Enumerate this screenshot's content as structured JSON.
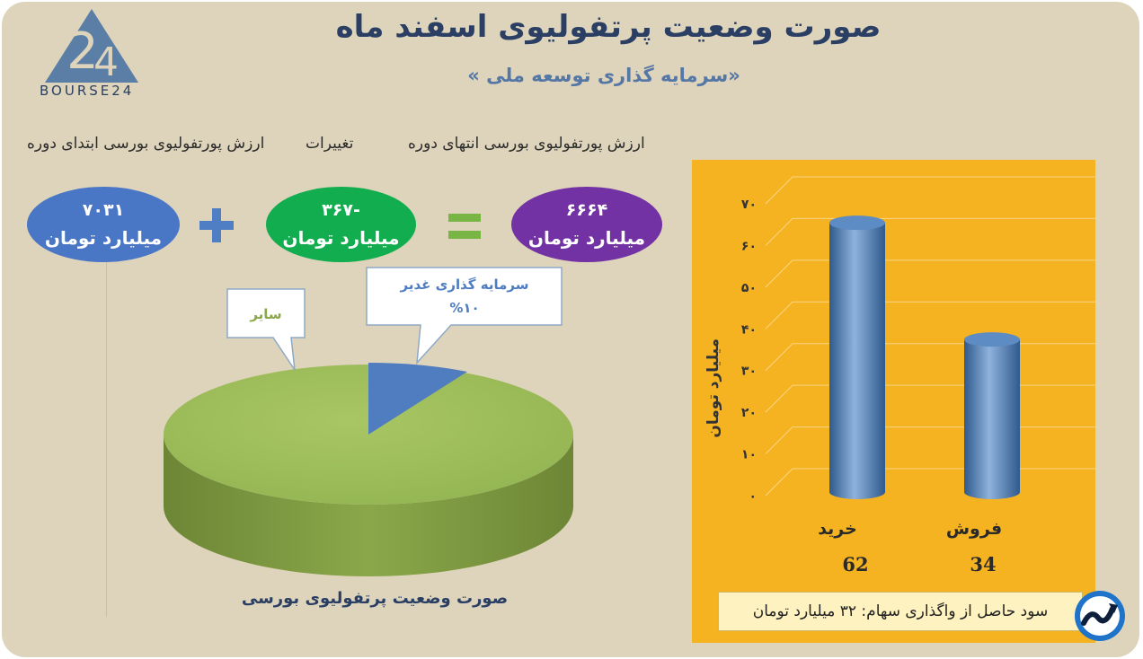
{
  "header": {
    "title": "صورت وضعیت پرتفولیوی اسفند ماه",
    "subtitle": "«سرمایه گذاری توسعه ملی »",
    "logo_text": "BOURSE24"
  },
  "equation": {
    "start_label": "ارزش پورتفولیوی بورسی ابتدای دوره",
    "change_label": "تغییرات",
    "end_label": "ارزش پورتفولیوی بورسی انتهای دوره",
    "start_value": "۷۰۳۱",
    "change_value": "-۳۶۷",
    "end_value": "۶۶۶۴",
    "unit": "میلیارد تومان",
    "colors": {
      "start": "#4a76c6",
      "change": "#12ad4f",
      "end": "#7332a4"
    }
  },
  "chart_data": [
    {
      "type": "pie",
      "title": "صورت وضعیت پرتفولیوی بورسی",
      "slices": [
        {
          "label": "سرمایه گذاری غدیر",
          "value_label": "%۱۰",
          "value": 10,
          "color": "#4f7dc0"
        },
        {
          "label": "سایر",
          "value": 90,
          "color": "#9bbb59"
        }
      ]
    },
    {
      "type": "bar",
      "ylabel": "میلیارد تومان",
      "ylim": [
        0,
        70
      ],
      "yticks": [
        "۰",
        "۱۰",
        "۲۰",
        "۳۰",
        "۴۰",
        "۵۰",
        "۶۰",
        "۷۰"
      ],
      "grid": true,
      "categories": [
        "خرید",
        "فروش"
      ],
      "values": [
        62,
        34
      ],
      "value_labels": [
        "62",
        "34"
      ],
      "background": "#f5b321",
      "bar_color": "#4f81bd"
    }
  ],
  "note": {
    "text": "سود حاصل از واگذاری سهام: ۳۲ میلیارد تومان"
  }
}
